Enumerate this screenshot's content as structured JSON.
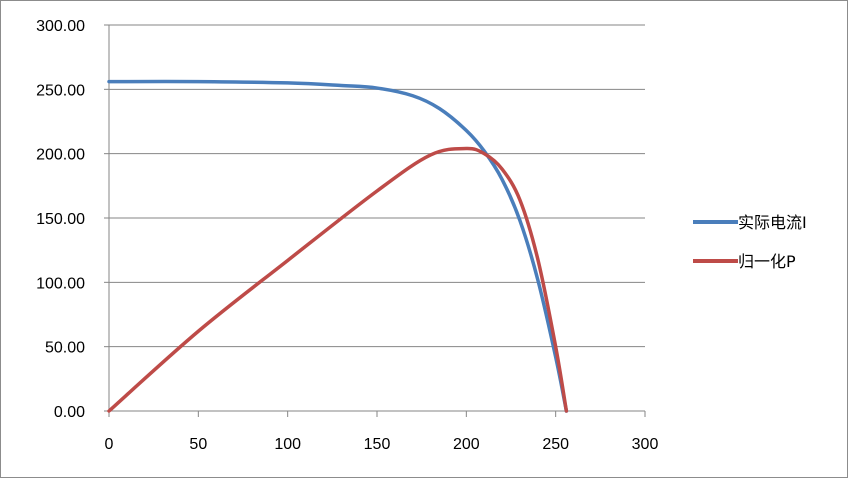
{
  "chart_data": {
    "type": "line",
    "title": "",
    "xlabel": "",
    "ylabel": "",
    "xlim": [
      0,
      300
    ],
    "ylim": [
      0,
      300
    ],
    "x_ticks": [
      "0",
      "50",
      "100",
      "150",
      "200",
      "250",
      "300"
    ],
    "y_ticks": [
      "0.00",
      "50.00",
      "100.00",
      "150.00",
      "200.00",
      "250.00",
      "300.00"
    ],
    "grid": "horizontal",
    "legend_position": "right",
    "series": [
      {
        "name": "实际电流I",
        "color": "#4a7ebb",
        "x": [
          0,
          50,
          100,
          130,
          150,
          170,
          185,
          200,
          210,
          220,
          230,
          240,
          250,
          256
        ],
        "y": [
          256,
          256,
          255,
          253,
          251,
          245,
          235,
          218,
          202,
          180,
          148,
          102,
          42,
          0
        ]
      },
      {
        "name": "归一化P",
        "color": "#be4b48",
        "x": [
          0,
          50,
          100,
          150,
          180,
          200,
          210,
          220,
          230,
          240,
          250,
          256
        ],
        "y": [
          0,
          62,
          117,
          171,
          199,
          204,
          200,
          188,
          164,
          118,
          50,
          0
        ]
      }
    ]
  }
}
